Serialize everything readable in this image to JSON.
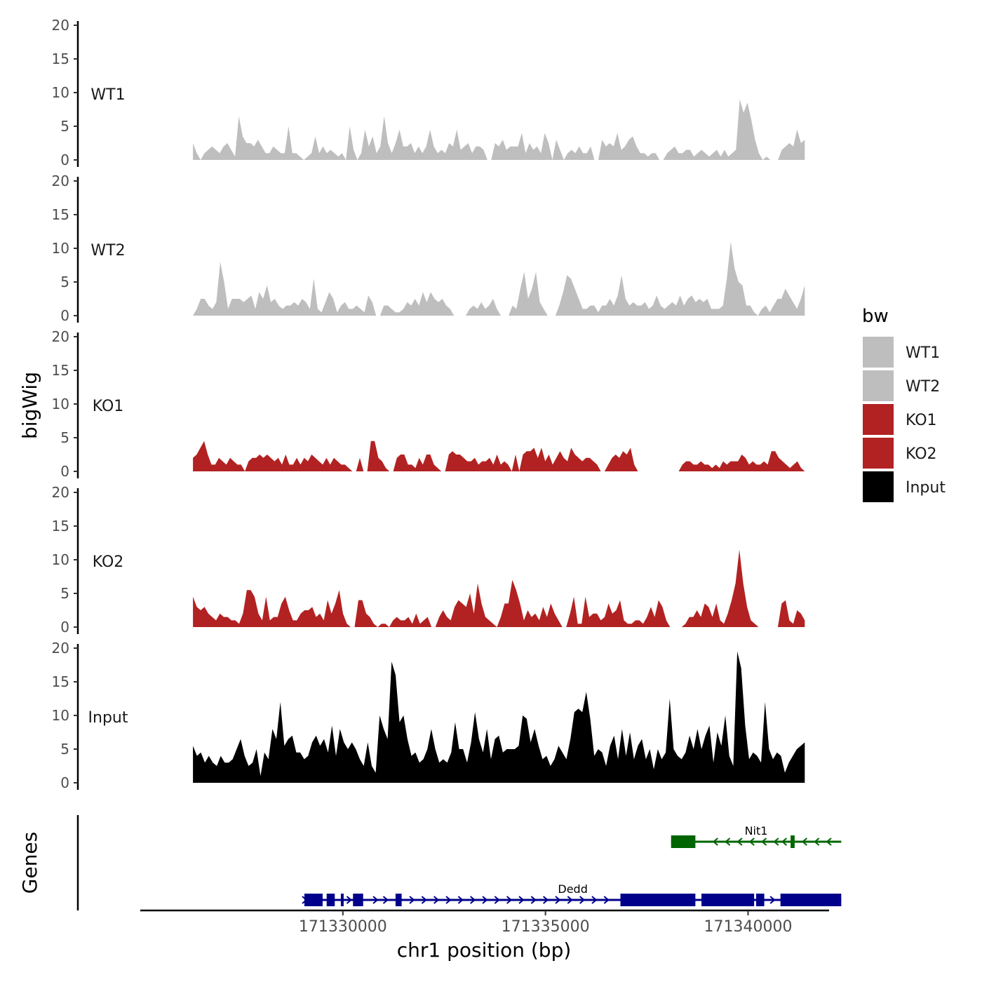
{
  "chart_data": {
    "type": "area",
    "ylabel": "bigWig",
    "genes_label": "Genes",
    "xlabel": "chr1 position (bp)",
    "xlim": [
      171325000,
      171342000
    ],
    "x_ticks": [
      171330000,
      171335000,
      171340000
    ],
    "x_tick_labels": [
      "171330000",
      "171335000",
      "171340000"
    ],
    "ylim": [
      0,
      20
    ],
    "y_ticks": [
      0,
      5,
      10,
      15,
      20
    ],
    "y_tick_labels": [
      "0",
      "5",
      "10",
      "15",
      "20"
    ],
    "signal_x_range": [
      171326300,
      171341400
    ],
    "legend": {
      "title": "bw",
      "entries": [
        {
          "name": "WT1",
          "color": "#BEBEBE"
        },
        {
          "name": "WT2",
          "color": "#BEBEBE"
        },
        {
          "name": "KO1",
          "color": "#B22222"
        },
        {
          "name": "KO2",
          "color": "#B22222"
        },
        {
          "name": "Input",
          "color": "#000000"
        }
      ]
    },
    "series": [
      {
        "name": "WT1",
        "color": "#BEBEBE",
        "values": [
          2.5,
          1.0,
          0,
          1.0,
          1.5,
          2.0,
          1.5,
          1.0,
          2.0,
          2.5,
          1.5,
          0.5,
          6.5,
          3.5,
          2.5,
          2.5,
          2.0,
          3.0,
          2.0,
          1.0,
          1.0,
          2.0,
          1.5,
          1.0,
          1.0,
          5.0,
          1.0,
          1.0,
          0.5,
          0,
          0.5,
          1.0,
          3.5,
          1.0,
          2.0,
          1.0,
          1.5,
          1.0,
          0.5,
          1.0,
          0,
          5.0,
          1.5,
          0,
          1.0,
          4.5,
          2.0,
          3.5,
          1.0,
          2.0,
          6.5,
          2.5,
          1.0,
          2.5,
          4.5,
          2.0,
          2.0,
          2.5,
          1.0,
          2.0,
          1.0,
          2.0,
          4.5,
          2.0,
          1.0,
          1.5,
          1.0,
          2.5,
          2.0,
          4.5,
          1.5,
          2.0,
          2.5,
          1.0,
          2.0,
          2.0,
          1.5,
          0,
          0,
          2.5,
          2.0,
          3.0,
          1.5,
          2.0,
          2.0,
          2.0,
          4.0,
          1.0,
          2.5,
          1.5,
          2.0,
          1.0,
          4.0,
          2.5,
          0,
          3.0,
          1.5,
          0,
          1.0,
          1.5,
          1.0,
          2.0,
          1.0,
          1.0,
          2.0,
          0,
          0,
          3.0,
          2.0,
          2.5,
          2.0,
          4.0,
          1.5,
          2.0,
          3.0,
          3.5,
          2.0,
          1.0,
          1.0,
          0.5,
          1.0,
          1.0,
          0,
          0,
          1.0,
          1.5,
          2.0,
          1.0,
          1.0,
          1.5,
          1.5,
          0.5,
          1.0,
          1.5,
          1.0,
          0.5,
          1.0,
          1.5,
          0.5,
          1.5,
          0.5,
          1.0,
          1.5,
          9.0,
          7.0,
          8.5,
          6.0,
          3.0,
          1.0,
          0,
          0.5,
          0,
          0,
          0,
          1.5,
          2.0,
          2.5,
          2.0,
          4.5,
          2.5,
          3.0
        ]
      },
      {
        "name": "WT2",
        "color": "#BEBEBE",
        "values": [
          0,
          1.0,
          2.5,
          2.5,
          1.5,
          1.0,
          2.0,
          8.0,
          5.0,
          1.0,
          2.5,
          2.5,
          2.5,
          2.0,
          2.5,
          3.0,
          1.0,
          3.5,
          2.5,
          4.5,
          2.0,
          2.5,
          1.5,
          1.0,
          1.5,
          1.5,
          2.0,
          1.5,
          2.5,
          2.0,
          1.0,
          5.5,
          1.0,
          0.5,
          2.0,
          3.5,
          2.5,
          0.5,
          1.5,
          2.0,
          1.0,
          1.0,
          1.5,
          1.0,
          0.5,
          3.0,
          2.0,
          0,
          0,
          1.5,
          1.5,
          1.0,
          0.5,
          0.5,
          1.0,
          2.0,
          1.5,
          2.5,
          1.5,
          3.5,
          2.0,
          3.5,
          2.5,
          2.0,
          2.5,
          1.5,
          1.0,
          0,
          0,
          0,
          0,
          1.0,
          1.5,
          1.0,
          2.0,
          1.0,
          1.5,
          2.5,
          1.0,
          0,
          0,
          0,
          1.5,
          1.0,
          4.0,
          6.5,
          2.5,
          4.0,
          6.5,
          2.0,
          1.0,
          0,
          0,
          0,
          1.5,
          3.5,
          6.0,
          5.5,
          4.0,
          2.5,
          1.0,
          1.0,
          1.5,
          1.5,
          0.5,
          1.5,
          1.5,
          2.5,
          1.5,
          3.0,
          6.0,
          2.5,
          1.5,
          2.0,
          1.5,
          1.5,
          2.0,
          1.0,
          1.5,
          3.0,
          1.5,
          1.0,
          1.5,
          2.0,
          1.5,
          3.0,
          1.5,
          2.5,
          3.0,
          2.0,
          2.5,
          2.0,
          2.5,
          1.0,
          1.0,
          1.0,
          1.5,
          5.5,
          11.0,
          7.0,
          5.0,
          4.5,
          1.5,
          1.5,
          0.5,
          0,
          1.0,
          1.5,
          0.5,
          1.5,
          2.5,
          2.5,
          4.0,
          3.0,
          2.0,
          1.0,
          2.5,
          4.5
        ]
      },
      {
        "name": "KO1",
        "color": "#B22222",
        "values": [
          2.0,
          2.5,
          3.5,
          4.5,
          2.5,
          1.0,
          1.0,
          2.0,
          1.5,
          1.0,
          2.0,
          1.5,
          1.0,
          1.0,
          0,
          1.5,
          2.0,
          2.0,
          2.5,
          2.0,
          2.5,
          2.0,
          1.5,
          2.0,
          1.0,
          2.5,
          1.0,
          1.0,
          2.0,
          1.0,
          2.0,
          1.5,
          2.5,
          2.0,
          1.5,
          1.0,
          2.0,
          1.0,
          2.0,
          1.5,
          1.0,
          1.0,
          0.5,
          0,
          0,
          2.0,
          0,
          0,
          4.5,
          4.5,
          2.0,
          1.5,
          0.5,
          0,
          0,
          2.0,
          2.5,
          2.5,
          1.0,
          1.0,
          0.5,
          2.0,
          1.0,
          2.5,
          2.5,
          1.0,
          0.5,
          0,
          0,
          2.5,
          3.0,
          2.5,
          2.5,
          2.0,
          1.5,
          1.5,
          2.0,
          1.0,
          1.5,
          1.5,
          2.0,
          1.0,
          2.5,
          1.0,
          1.5,
          1.0,
          0,
          2.5,
          0,
          2.5,
          3.0,
          3.0,
          3.5,
          2.0,
          3.5,
          1.5,
          2.5,
          1.0,
          2.0,
          3.0,
          2.0,
          1.5,
          3.5,
          2.5,
          2.0,
          1.5,
          2.0,
          2.0,
          1.5,
          1.0,
          0,
          0,
          1.0,
          2.0,
          2.5,
          2.0,
          3.0,
          2.5,
          3.5,
          1.0,
          0,
          0,
          0,
          0,
          0,
          0,
          0,
          0,
          0,
          0,
          0,
          0,
          1.0,
          1.5,
          1.5,
          1.0,
          1.0,
          1.5,
          1.0,
          1.0,
          0.5,
          1.0,
          0.5,
          1.5,
          1.0,
          1.5,
          1.5,
          1.5,
          2.5,
          2.0,
          1.0,
          1.5,
          1.0,
          1.0,
          1.5,
          1.0,
          3.0,
          3.0,
          2.0,
          1.5,
          1.0,
          0.5,
          1.0,
          1.5,
          0.5,
          0
        ]
      },
      {
        "name": "KO2",
        "color": "#B22222",
        "values": [
          4.5,
          3.0,
          2.5,
          3.0,
          2.0,
          1.5,
          1.0,
          2.0,
          1.5,
          1.5,
          1.0,
          1.0,
          0.5,
          2.0,
          5.5,
          5.5,
          4.5,
          2.0,
          1.0,
          4.5,
          1.0,
          1.5,
          1.5,
          3.5,
          4.5,
          2.5,
          1.0,
          1.0,
          2.0,
          2.5,
          2.5,
          3.0,
          1.5,
          2.0,
          1.0,
          4.0,
          2.0,
          3.5,
          5.5,
          2.0,
          0.5,
          0,
          0,
          4.0,
          4.0,
          2.0,
          1.5,
          0.5,
          0,
          0.5,
          0.5,
          0,
          1.0,
          1.5,
          1.0,
          1.0,
          1.5,
          0.5,
          2.0,
          0.5,
          1.0,
          1.5,
          0,
          0,
          1.5,
          2.5,
          1.5,
          1.0,
          3.0,
          4.0,
          3.5,
          3.0,
          5.0,
          2.0,
          6.5,
          3.5,
          1.5,
          1.0,
          0.5,
          0,
          1.5,
          3.5,
          3.5,
          7.0,
          5.5,
          3.5,
          1.0,
          2.5,
          1.5,
          2.0,
          1.0,
          3.0,
          1.5,
          3.5,
          2.0,
          1.0,
          0,
          0,
          2.0,
          4.5,
          0.5,
          0.5,
          4.5,
          1.5,
          2.0,
          2.0,
          1.0,
          1.5,
          3.5,
          2.0,
          2.5,
          4.0,
          1.0,
          0.5,
          0.5,
          1.0,
          1.0,
          0.5,
          1.5,
          3.0,
          1.5,
          4.0,
          3.0,
          1.0,
          0,
          0,
          0,
          0,
          0.5,
          1.5,
          1.5,
          2.5,
          1.5,
          3.5,
          3.0,
          1.5,
          3.5,
          1.0,
          0.5,
          2.0,
          4.0,
          6.5,
          11.5,
          6.5,
          3.0,
          1.0,
          0.5,
          0,
          0,
          0,
          0,
          0,
          0,
          3.5,
          4.0,
          1.0,
          0.5,
          2.5,
          2.0,
          1.0
        ]
      },
      {
        "name": "Input",
        "color": "#000000",
        "values": [
          5.5,
          4.0,
          4.5,
          3.0,
          4.0,
          3.0,
          2.5,
          4.0,
          3.0,
          3.0,
          3.5,
          5.0,
          6.5,
          4.0,
          2.5,
          3.0,
          5.0,
          1.0,
          4.5,
          3.5,
          8.0,
          6.5,
          12.0,
          5.5,
          6.5,
          7.0,
          4.5,
          4.5,
          3.5,
          4.0,
          6.0,
          7.0,
          5.5,
          6.5,
          4.5,
          8.5,
          4.0,
          8.0,
          6.0,
          5.0,
          6.0,
          5.0,
          3.5,
          2.5,
          6.0,
          2.5,
          1.5,
          10.0,
          8.0,
          6.5,
          18.0,
          16.0,
          9.0,
          10.0,
          6.5,
          4.0,
          4.5,
          3.0,
          3.5,
          5.0,
          8.0,
          5.0,
          3.0,
          3.5,
          3.0,
          4.5,
          9.0,
          5.0,
          5.0,
          3.0,
          6.0,
          10.5,
          6.5,
          4.5,
          8.0,
          3.5,
          6.5,
          7.0,
          4.5,
          5.0,
          5.0,
          5.0,
          5.5,
          10.0,
          9.5,
          6.0,
          8.0,
          5.5,
          3.5,
          4.0,
          2.5,
          3.5,
          5.5,
          4.5,
          3.5,
          6.5,
          10.5,
          11.0,
          10.5,
          13.5,
          9.5,
          4.0,
          5.0,
          4.5,
          2.5,
          5.5,
          7.0,
          3.5,
          8.0,
          4.0,
          7.5,
          3.5,
          5.5,
          6.5,
          3.5,
          5.0,
          2.0,
          5.0,
          3.5,
          4.5,
          12.5,
          5.0,
          4.0,
          3.5,
          4.5,
          7.0,
          5.0,
          8.0,
          5.0,
          7.0,
          8.5,
          3.0,
          7.5,
          5.5,
          10.0,
          4.0,
          2.5,
          19.5,
          17.0,
          8.5,
          3.5,
          4.5,
          4.0,
          3.0,
          12.0,
          5.0,
          3.5,
          4.5,
          4.0,
          1.5,
          3.0,
          4.0,
          5.0,
          5.5,
          6.0
        ]
      }
    ],
    "genes": [
      {
        "name": "Nit1",
        "strand": "-",
        "color": "#006400",
        "start": 171338100,
        "end": 171342300,
        "exons": [
          [
            171338100,
            171338700
          ],
          [
            171341050,
            171341150
          ]
        ],
        "intron_arrow_positions": [
          171339200,
          171339500,
          171339800,
          171340100,
          171340400,
          171340700,
          171340900,
          171341400,
          171341700,
          171342000
        ]
      },
      {
        "name": "Dedd",
        "strand": "+",
        "color": "#00008B",
        "start": 171329050,
        "end": 171342300,
        "exons": [
          [
            171329050,
            171329500
          ],
          [
            171329600,
            171329800
          ],
          [
            171329950,
            171330000
          ],
          [
            171330250,
            171330500
          ],
          [
            171331300,
            171331450
          ],
          [
            171336850,
            171338700
          ],
          [
            171338850,
            171340150
          ],
          [
            171340200,
            171340400
          ],
          [
            171340800,
            171342300
          ]
        ],
        "intron_arrow_positions": [
          171329050,
          171330150,
          171330800,
          171331050,
          171331700,
          171332000,
          171332300,
          171332600,
          171332900,
          171333200,
          171333500,
          171333800,
          171334100,
          171334400,
          171334700,
          171335000,
          171335300,
          171335600,
          171335900,
          171336200,
          171336500,
          171340600
        ]
      }
    ]
  }
}
